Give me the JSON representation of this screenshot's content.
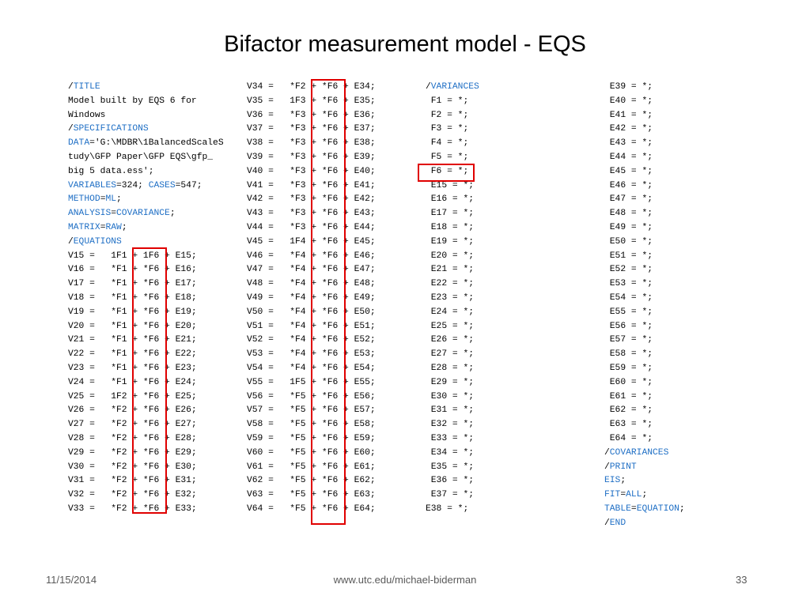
{
  "title": "Bifactor measurement model - EQS",
  "col1": [
    {
      "t": "/TITLE",
      "k": true
    },
    {
      "t": "Model built by EQS 6 for"
    },
    {
      "t": "Windows"
    },
    {
      "t": "/SPECIFICATIONS",
      "k": true
    },
    {
      "t": "DATA='G:\\MDBR\\1BalancedScaleS",
      "k": "DATA"
    },
    {
      "t": "tudy\\GFP Paper\\GFP EQS\\gfp_"
    },
    {
      "t": "big 5 data.ess';"
    },
    {
      "t": "VARIABLES=324; CASES=547;",
      "k": "VC"
    },
    {
      "t": "METHOD=ML;",
      "k": "ML"
    },
    {
      "t": "ANALYSIS=COVARIANCE;",
      "k": "AN"
    },
    {
      "t": "MATRIX=RAW;",
      "k": "MR"
    },
    {
      "t": "/EQUATIONS",
      "k": true
    },
    {
      "t": "V15 =   1F1 + 1F6 + E15;"
    },
    {
      "t": "V16 =   *F1 + *F6 + E16;"
    },
    {
      "t": "V17 =   *F1 + *F6 + E17;"
    },
    {
      "t": "V18 =   *F1 + *F6 + E18;"
    },
    {
      "t": "V19 =   *F1 + *F6 + E19;"
    },
    {
      "t": "V20 =   *F1 + *F6 + E20;"
    },
    {
      "t": "V21 =   *F1 + *F6 + E21;"
    },
    {
      "t": "V22 =   *F1 + *F6 + E22;"
    },
    {
      "t": "V23 =   *F1 + *F6 + E23;"
    },
    {
      "t": "V24 =   *F1 + *F6 + E24;"
    },
    {
      "t": "V25 =   1F2 + *F6 + E25;"
    },
    {
      "t": "V26 =   *F2 + *F6 + E26;"
    },
    {
      "t": "V27 =   *F2 + *F6 + E27;"
    },
    {
      "t": "V28 =   *F2 + *F6 + E28;"
    },
    {
      "t": "V29 =   *F2 + *F6 + E29;"
    },
    {
      "t": "V30 =   *F2 + *F6 + E30;"
    },
    {
      "t": "V31 =   *F2 + *F6 + E31;"
    },
    {
      "t": "V32 =   *F2 + *F6 + E32;"
    },
    {
      "t": "V33 =   *F2 + *F6 + E33;"
    }
  ],
  "col2": [
    "V34 =   *F2 + *F6 + E34;",
    "V35 =   1F3 + *F6 + E35;",
    "V36 =   *F3 + *F6 + E36;",
    "V37 =   *F3 + *F6 + E37;",
    "V38 =   *F3 + *F6 + E38;",
    "V39 =   *F3 + *F6 + E39;",
    "V40 =   *F3 + *F6 + E40;",
    "V41 =   *F3 + *F6 + E41;",
    "V42 =   *F3 + *F6 + E42;",
    "V43 =   *F3 + *F6 + E43;",
    "V44 =   *F3 + *F6 + E44;",
    "V45 =   1F4 + *F6 + E45;",
    "V46 =   *F4 + *F6 + E46;",
    "V47 =   *F4 + *F6 + E47;",
    "V48 =   *F4 + *F6 + E48;",
    "V49 =   *F4 + *F6 + E49;",
    "V50 =   *F4 + *F6 + E50;",
    "V51 =   *F4 + *F6 + E51;",
    "V52 =   *F4 + *F6 + E52;",
    "V53 =   *F4 + *F6 + E53;",
    "V54 =   *F4 + *F6 + E54;",
    "V55 =   1F5 + *F6 + E55;",
    "V56 =   *F5 + *F6 + E56;",
    "V57 =   *F5 + *F6 + E57;",
    "V58 =   *F5 + *F6 + E58;",
    "V59 =   *F5 + *F6 + E59;",
    "V60 =   *F5 + *F6 + E60;",
    "V61 =   *F5 + *F6 + E61;",
    "V62 =   *F5 + *F6 + E62;",
    "V63 =   *F5 + *F6 + E63;",
    "V64 =   *F5 + *F6 + E64;"
  ],
  "col3": [
    {
      "t": "/VARIANCES",
      "k": true
    },
    {
      "t": " F1 = *;"
    },
    {
      "t": " F2 = *;"
    },
    {
      "t": " F3 = *;"
    },
    {
      "t": " F4 = *;"
    },
    {
      "t": " F5 = *;"
    },
    {
      "t": " F6 = *;"
    },
    {
      "t": " E15 = *;"
    },
    {
      "t": " E16 = *;"
    },
    {
      "t": " E17 = *;"
    },
    {
      "t": " E18 = *;"
    },
    {
      "t": " E19 = *;"
    },
    {
      "t": " E20 = *;"
    },
    {
      "t": " E21 = *;"
    },
    {
      "t": " E22 = *;"
    },
    {
      "t": " E23 = *;"
    },
    {
      "t": " E24 = *;"
    },
    {
      "t": " E25 = *;"
    },
    {
      "t": " E26 = *;"
    },
    {
      "t": " E27 = *;"
    },
    {
      "t": " E28 = *;"
    },
    {
      "t": " E29 = *;"
    },
    {
      "t": " E30 = *;"
    },
    {
      "t": " E31 = *;"
    },
    {
      "t": " E32 = *;"
    },
    {
      "t": " E33 = *;"
    },
    {
      "t": " E34 = *;"
    },
    {
      "t": " E35 = *;"
    },
    {
      "t": " E36 = *;"
    },
    {
      "t": " E37 = *;"
    },
    {
      "t": "E38 = *;"
    }
  ],
  "col4": [
    {
      "t": " E39 = *;"
    },
    {
      "t": " E40 = *;"
    },
    {
      "t": " E41 = *;"
    },
    {
      "t": " E42 = *;"
    },
    {
      "t": " E43 = *;"
    },
    {
      "t": " E44 = *;"
    },
    {
      "t": " E45 = *;"
    },
    {
      "t": " E46 = *;"
    },
    {
      "t": " E47 = *;"
    },
    {
      "t": " E48 = *;"
    },
    {
      "t": " E49 = *;"
    },
    {
      "t": " E50 = *;"
    },
    {
      "t": " E51 = *;"
    },
    {
      "t": " E52 = *;"
    },
    {
      "t": " E53 = *;"
    },
    {
      "t": " E54 = *;"
    },
    {
      "t": " E55 = *;"
    },
    {
      "t": " E56 = *;"
    },
    {
      "t": " E57 = *;"
    },
    {
      "t": " E58 = *;"
    },
    {
      "t": " E59 = *;"
    },
    {
      "t": " E60 = *;"
    },
    {
      "t": " E61 = *;"
    },
    {
      "t": " E62 = *;"
    },
    {
      "t": " E63 = *;"
    },
    {
      "t": " E64 = *;"
    },
    {
      "t": "/COVARIANCES",
      "k": true
    },
    {
      "t": "/PRINT",
      "k": true
    },
    {
      "t": "EIS;",
      "k": "EIS"
    },
    {
      "t": "FIT=ALL;",
      "k": "FIT"
    },
    {
      "t": "TABLE=EQUATION;",
      "k": "TABLE"
    },
    {
      "t": "/END",
      "k": true
    }
  ],
  "footer": {
    "date": "11/15/2014",
    "url": "www.utc.edu/michael-biderman",
    "page": "33"
  },
  "colors": {
    "keyword": "#1f6fc5",
    "highlight_box": "#e00000"
  }
}
